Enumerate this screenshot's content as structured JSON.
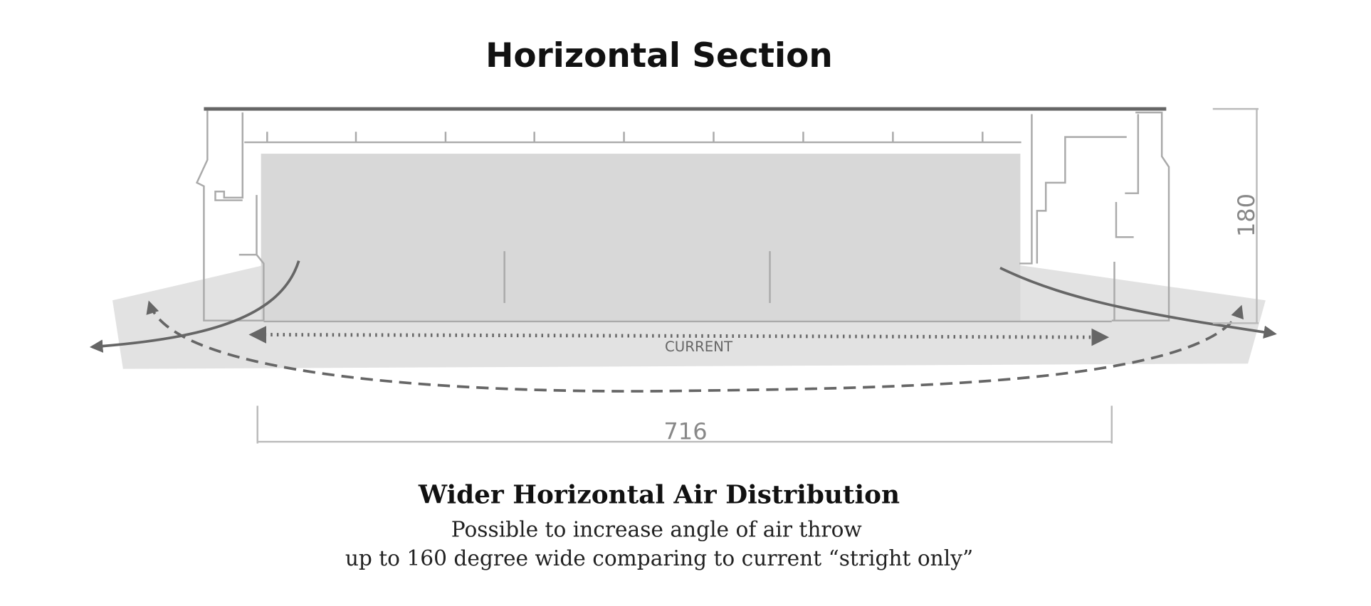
{
  "header": {
    "title": "Horizontal Section"
  },
  "diagram": {
    "flow_label": "CURRENT",
    "width_label": "716",
    "height_label": "180"
  },
  "caption": {
    "heading": "Wider Horizontal Air Distribution",
    "lines": [
      "Possible to increase angle of air throw",
      "up to 160 degree wide comparing to current “stright only”"
    ]
  }
}
